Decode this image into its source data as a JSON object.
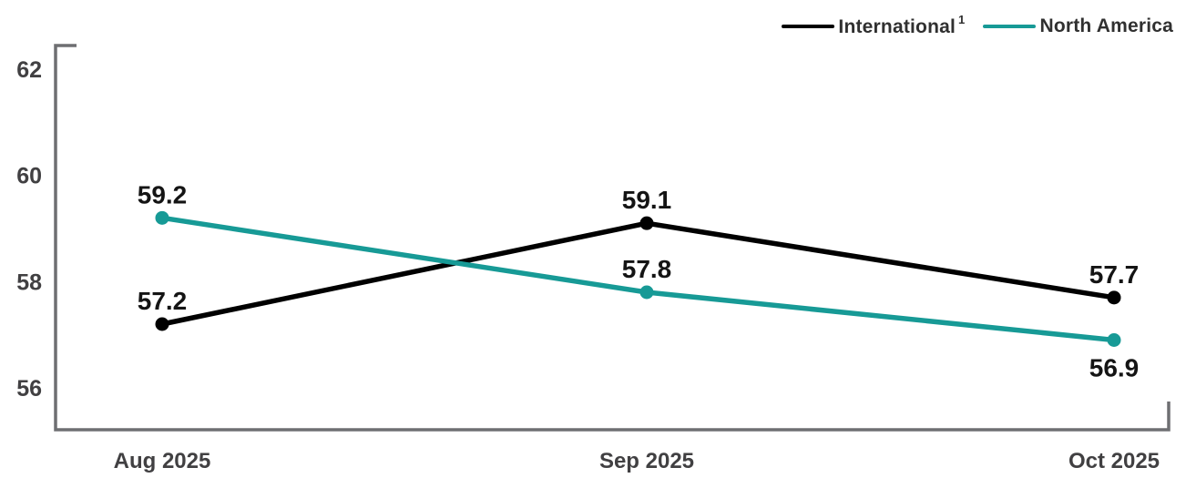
{
  "chart_data": {
    "type": "line",
    "title": "",
    "xlabel": "",
    "ylabel": "",
    "categories": [
      "Aug 2025",
      "Sep 2025",
      "Oct 2025"
    ],
    "series": [
      {
        "name": "International",
        "footnote_marker": "1",
        "color": "#000000",
        "values": [
          57.2,
          59.1,
          57.7
        ],
        "value_labels": [
          "57.2",
          "59.1",
          "57.7"
        ],
        "label_positions": [
          "above",
          "above",
          "above"
        ]
      },
      {
        "name": "North America",
        "footnote_marker": "",
        "color": "#179a96",
        "values": [
          59.2,
          57.8,
          56.9
        ],
        "value_labels": [
          "59.2",
          "57.8",
          "56.9"
        ],
        "label_positions": [
          "above",
          "above",
          "below"
        ]
      }
    ],
    "yticks": [
      56,
      58,
      60,
      62
    ],
    "ylim": [
      55.2,
      62.5
    ],
    "grid": false,
    "legend_position": "top-right",
    "axis_color": "#6e6f72",
    "tick_label_color": "#414042",
    "value_label_color": "#141414"
  }
}
